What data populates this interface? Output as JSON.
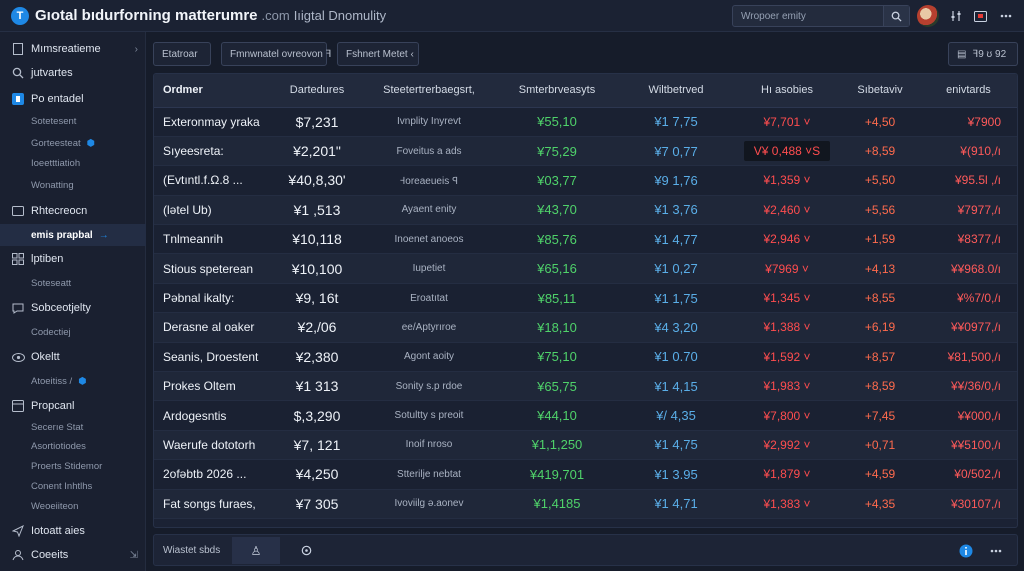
{
  "app": {
    "title": "Gıotal bıdurforning matterumre",
    "domain": ".com",
    "subtitle": "Iıigtal Dnomulity"
  },
  "search": {
    "placeholder": "Wropoer emity"
  },
  "sidebar": {
    "items": [
      {
        "label": "Mımsreatieme",
        "kind": "main",
        "icon": "file-icon",
        "chevron": "›"
      },
      {
        "label": "jutvartes",
        "kind": "main",
        "icon": "search-icon"
      },
      {
        "label": "Po entadel",
        "kind": "main",
        "icon": "bookmark-icon"
      },
      {
        "label": "Sotetesent",
        "kind": "sub"
      },
      {
        "label": "Gorteesteat",
        "kind": "sub"
      },
      {
        "label": "Ioeetttiatioh",
        "kind": "sub"
      },
      {
        "label": "Wonatting",
        "kind": "sub"
      },
      {
        "label": "Rhtecreocn",
        "kind": "main",
        "icon": "card-icon"
      },
      {
        "label": "emis prapbal",
        "kind": "active"
      },
      {
        "label": "lptiben",
        "kind": "main",
        "icon": "grid-icon"
      },
      {
        "label": "Soteseatt",
        "kind": "sub"
      },
      {
        "label": "Sobceotjelty",
        "kind": "main",
        "icon": "chat-icon"
      },
      {
        "label": "Codectiej",
        "kind": "sub"
      },
      {
        "label": "Okeltt",
        "kind": "main",
        "icon": "eye-icon"
      },
      {
        "label": "Atoeitiss /",
        "kind": "sub"
      },
      {
        "label": "Propcanl",
        "kind": "main",
        "icon": "box-icon"
      },
      {
        "label": "Secerıe Stat",
        "kind": "sub"
      },
      {
        "label": "Asortiotiodes",
        "kind": "sub"
      },
      {
        "label": "Proerts Stidemor",
        "kind": "sub"
      },
      {
        "label": "Conent Inhtlhs",
        "kind": "sub"
      },
      {
        "label": "Weoeiiteon",
        "kind": "sub"
      },
      {
        "label": "Iotoatt aies",
        "kind": "main",
        "icon": "send-icon"
      },
      {
        "label": "Coeeits",
        "kind": "main",
        "icon": "user-icon",
        "chevron": "⇲"
      }
    ]
  },
  "filters": {
    "chip1": "Etatroar",
    "chip2": "Fmnwnatel ovreovon  ꟻ",
    "chip3": "Fshnert Metet  ‹",
    "chip4": "ꟻ9 ʊ 92",
    "colors": {
      "accent": "#1e88e5",
      "positive": "#4fd26a",
      "negative": "#ff4d4f",
      "info": "#5aaee8"
    }
  },
  "table": {
    "headers": [
      "Ordmer",
      "Dartedures",
      "Steetertrerbaegsrt,",
      "Smterbrveasyts",
      "Wiltbetrved",
      "Hı asobies",
      "Sıbetaviv",
      "enivtards"
    ],
    "rows": [
      [
        "Exteronmay yraka",
        "$7,231",
        "Ivnplity Inyrevt",
        "¥55,10",
        "¥1 7,75",
        "¥7,701 ˅",
        "+4,50",
        "¥7900"
      ],
      [
        "Sıyeesreta:",
        "¥2,201\"",
        "Foveitus a ads",
        "¥75,29",
        "¥7 0,77",
        "V¥ 0,488  ˅S",
        "+8,59",
        "¥(910,/ı"
      ],
      [
        "(Evtıntl.f.Ω.8 ...",
        "¥40,8,30'",
        "Ꟶoreaeueis ꟼ",
        "¥03,77",
        "¥9 1,76",
        "¥1,359 ˅",
        "+5,50",
        "¥95.5l ,/ı"
      ],
      [
        "(lətel Ub)",
        "¥1 ,513",
        "Ayaent enity",
        "¥43,70",
        "¥1 3,76",
        "¥2,460 ˅",
        "+5,56",
        "¥7977,/ı"
      ],
      [
        "Tnlmeanrih",
        "¥10,118",
        "Inoenet anoeos",
        "¥85,76",
        "¥1 4,77",
        "¥2,946 ˅",
        "+1,59",
        "¥8377,/ı"
      ],
      [
        "Stious speterean",
        "¥10,100",
        "Iupetiet",
        "¥65,16",
        "¥1 0,27",
        "¥7969 ˅",
        "+4,13",
        "¥¥968.0/ı"
      ],
      [
        "Pəbnal ikalty:",
        "¥9, 16t",
        "Eroatıtat",
        "¥85,11",
        "¥1 1,75",
        "¥1,345 ˅",
        "+8,55",
        "¥%7/0,/ı"
      ],
      [
        "Derasne al oaker",
        "¥2,/06",
        "ee/Aptyrıroe",
        "¥18,10",
        "¥4 3,20",
        "¥1,388 ˅",
        "+6,19",
        "¥¥0977,/ı"
      ],
      [
        "Seanis, Droestent",
        "¥2,380",
        "Agont aoity",
        "¥75,10",
        "¥1 0.70",
        "¥1,592 ˅",
        "+8,57",
        "¥81,500,/ı"
      ],
      [
        "Prokes Oltem",
        "¥1 313",
        "Sonity s.p rdoe",
        "¥65,75",
        "¥1 4,15",
        "¥1,983 ˅",
        "+8,59",
        "¥¥/36/0,/ı"
      ],
      [
        "Ardogesntis",
        "$,3,290",
        "Sotultty s preoit",
        "¥44,10",
        "¥/ 4,35",
        "¥7,800 ˅",
        "+7,45",
        "¥¥000,/ı"
      ],
      [
        "Waerufe dototorh",
        "¥7, 121",
        "Inoif nroso",
        "¥1,1,250",
        "¥1 4,75",
        "¥2,992 ˅",
        "+0,71",
        "¥¥5100,/ı"
      ],
      [
        "2ofəbtb 2026 ...",
        "¥4,250",
        "Stterilje nebtat",
        "¥419,701",
        "¥1 3.95",
        "¥1,879 ˅",
        "+4,59",
        "¥0/502,/ı"
      ],
      [
        "Fat songs furaes,",
        "¥7 305",
        "Ivoviilg ə.aonev",
        "¥1,4185",
        "¥1 4,71",
        "¥1,383 ˅",
        "+4,35",
        "¥30107,/ı"
      ]
    ]
  },
  "footer": {
    "label": "Wiastet sbds"
  }
}
